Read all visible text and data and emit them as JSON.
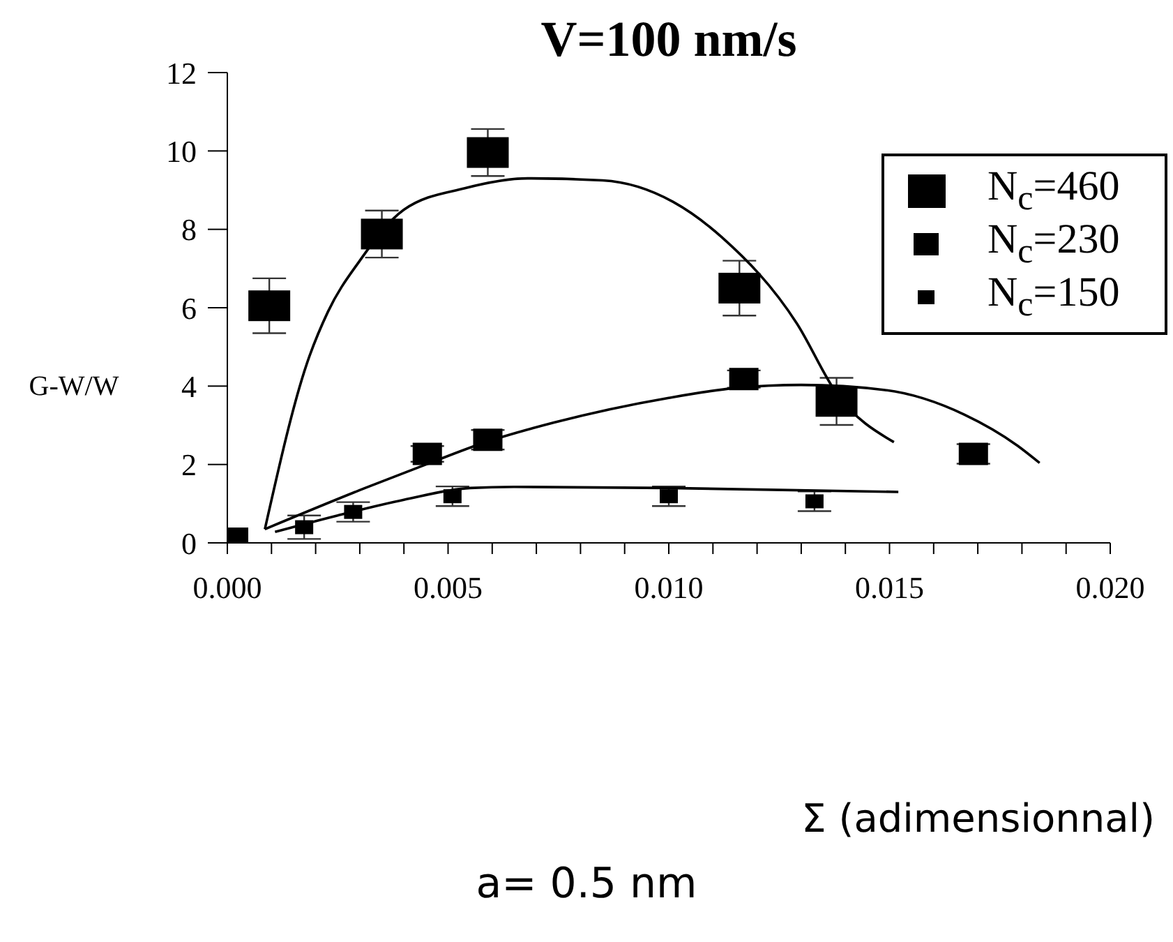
{
  "chart_data": {
    "type": "scatter",
    "title": "V=100 nm/s",
    "xlabel": "Σ (adimensionnal)",
    "ylabel": "G-W/W",
    "annotations": [
      "a= 0.5 nm"
    ],
    "xlim": [
      0,
      0.02
    ],
    "ylim": [
      0,
      12
    ],
    "xticks": [
      {
        "value": 0,
        "label": "0.000"
      },
      {
        "value": 0.001,
        "label": null
      },
      {
        "value": 0.002,
        "label": null
      },
      {
        "value": 0.003,
        "label": null
      },
      {
        "value": 0.004,
        "label": null
      },
      {
        "value": 0.005,
        "label": "0.005"
      },
      {
        "value": 0.006,
        "label": null
      },
      {
        "value": 0.007,
        "label": null
      },
      {
        "value": 0.008,
        "label": null
      },
      {
        "value": 0.009,
        "label": null
      },
      {
        "value": 0.01,
        "label": "0.010"
      },
      {
        "value": 0.011,
        "label": null
      },
      {
        "value": 0.012,
        "label": null
      },
      {
        "value": 0.013,
        "label": null
      },
      {
        "value": 0.014,
        "label": null
      },
      {
        "value": 0.015,
        "label": "0.015"
      },
      {
        "value": 0.016,
        "label": null
      },
      {
        "value": 0.017,
        "label": null
      },
      {
        "value": 0.018,
        "label": null
      },
      {
        "value": 0.019,
        "label": null
      },
      {
        "value": 0.02,
        "label": "0.020"
      }
    ],
    "yticks": [
      0,
      2,
      4,
      6,
      8,
      10,
      12
    ],
    "legend": "top right",
    "series": [
      {
        "name": "N$_{c}$=460",
        "marker": "square",
        "color": "#000000",
        "x": [
          0,
          0.00095,
          0.0035,
          0.0059,
          0.0116,
          0.0138
        ],
        "values": [
          0,
          6.05,
          7.88,
          9.96,
          6.5,
          3.61
        ],
        "errors": [
          null,
          0.7,
          0.6,
          0.6,
          0.7,
          0.6
        ]
      },
      {
        "name": "N$_{c}$=230",
        "marker": "square",
        "color": "#000000",
        "x": [
          0.00453,
          0.0059,
          0.0117,
          0.0169
        ],
        "values": [
          2.27,
          2.63,
          4.18,
          2.27
        ],
        "errors": [
          0.2,
          0.25,
          0.22,
          0.25
        ]
      },
      {
        "name": "N$_{c}$=150",
        "marker": "square",
        "color": "#000000",
        "x": [
          0.00174,
          0.00285,
          0.0051,
          0.01,
          0.0133
        ],
        "values": [
          0.4,
          0.79,
          1.19,
          1.19,
          1.06
        ],
        "errors": [
          0.3,
          0.25,
          0.25,
          0.25,
          0.25
        ]
      },
      {
        "type": "line",
        "color": "#000000",
        "x": [
          0.00085,
          0.0018,
          0.00228,
          0.003,
          0.004,
          0.00538,
          0.0068,
          0.0085,
          0.0101,
          0.0112,
          0.0129,
          0.0138,
          0.0151
        ],
        "values": [
          0.35,
          4.57,
          5.9,
          7.2,
          8.5,
          9.05,
          9.3,
          9.25,
          8.7,
          7.8,
          5.6,
          3.82,
          2.57
        ]
      },
      {
        "type": "line",
        "color": "#000000",
        "x": [
          0.00085,
          0.0031,
          0.0045,
          0.0058,
          0.0074,
          0.01,
          0.0115,
          0.013,
          0.0149,
          0.0167,
          0.0179,
          0.0184
        ],
        "values": [
          0.35,
          1.39,
          2.0,
          2.55,
          3.07,
          3.7,
          3.95,
          4.03,
          3.9,
          3.27,
          2.48,
          2.04
        ]
      },
      {
        "type": "line",
        "color": "#000000",
        "x": [
          0.00108,
          0.0025,
          0.004,
          0.0055,
          0.0065,
          0.01,
          0.0152
        ],
        "values": [
          0.28,
          0.7,
          1.1,
          1.4,
          1.43,
          1.4,
          1.3
        ]
      }
    ]
  }
}
